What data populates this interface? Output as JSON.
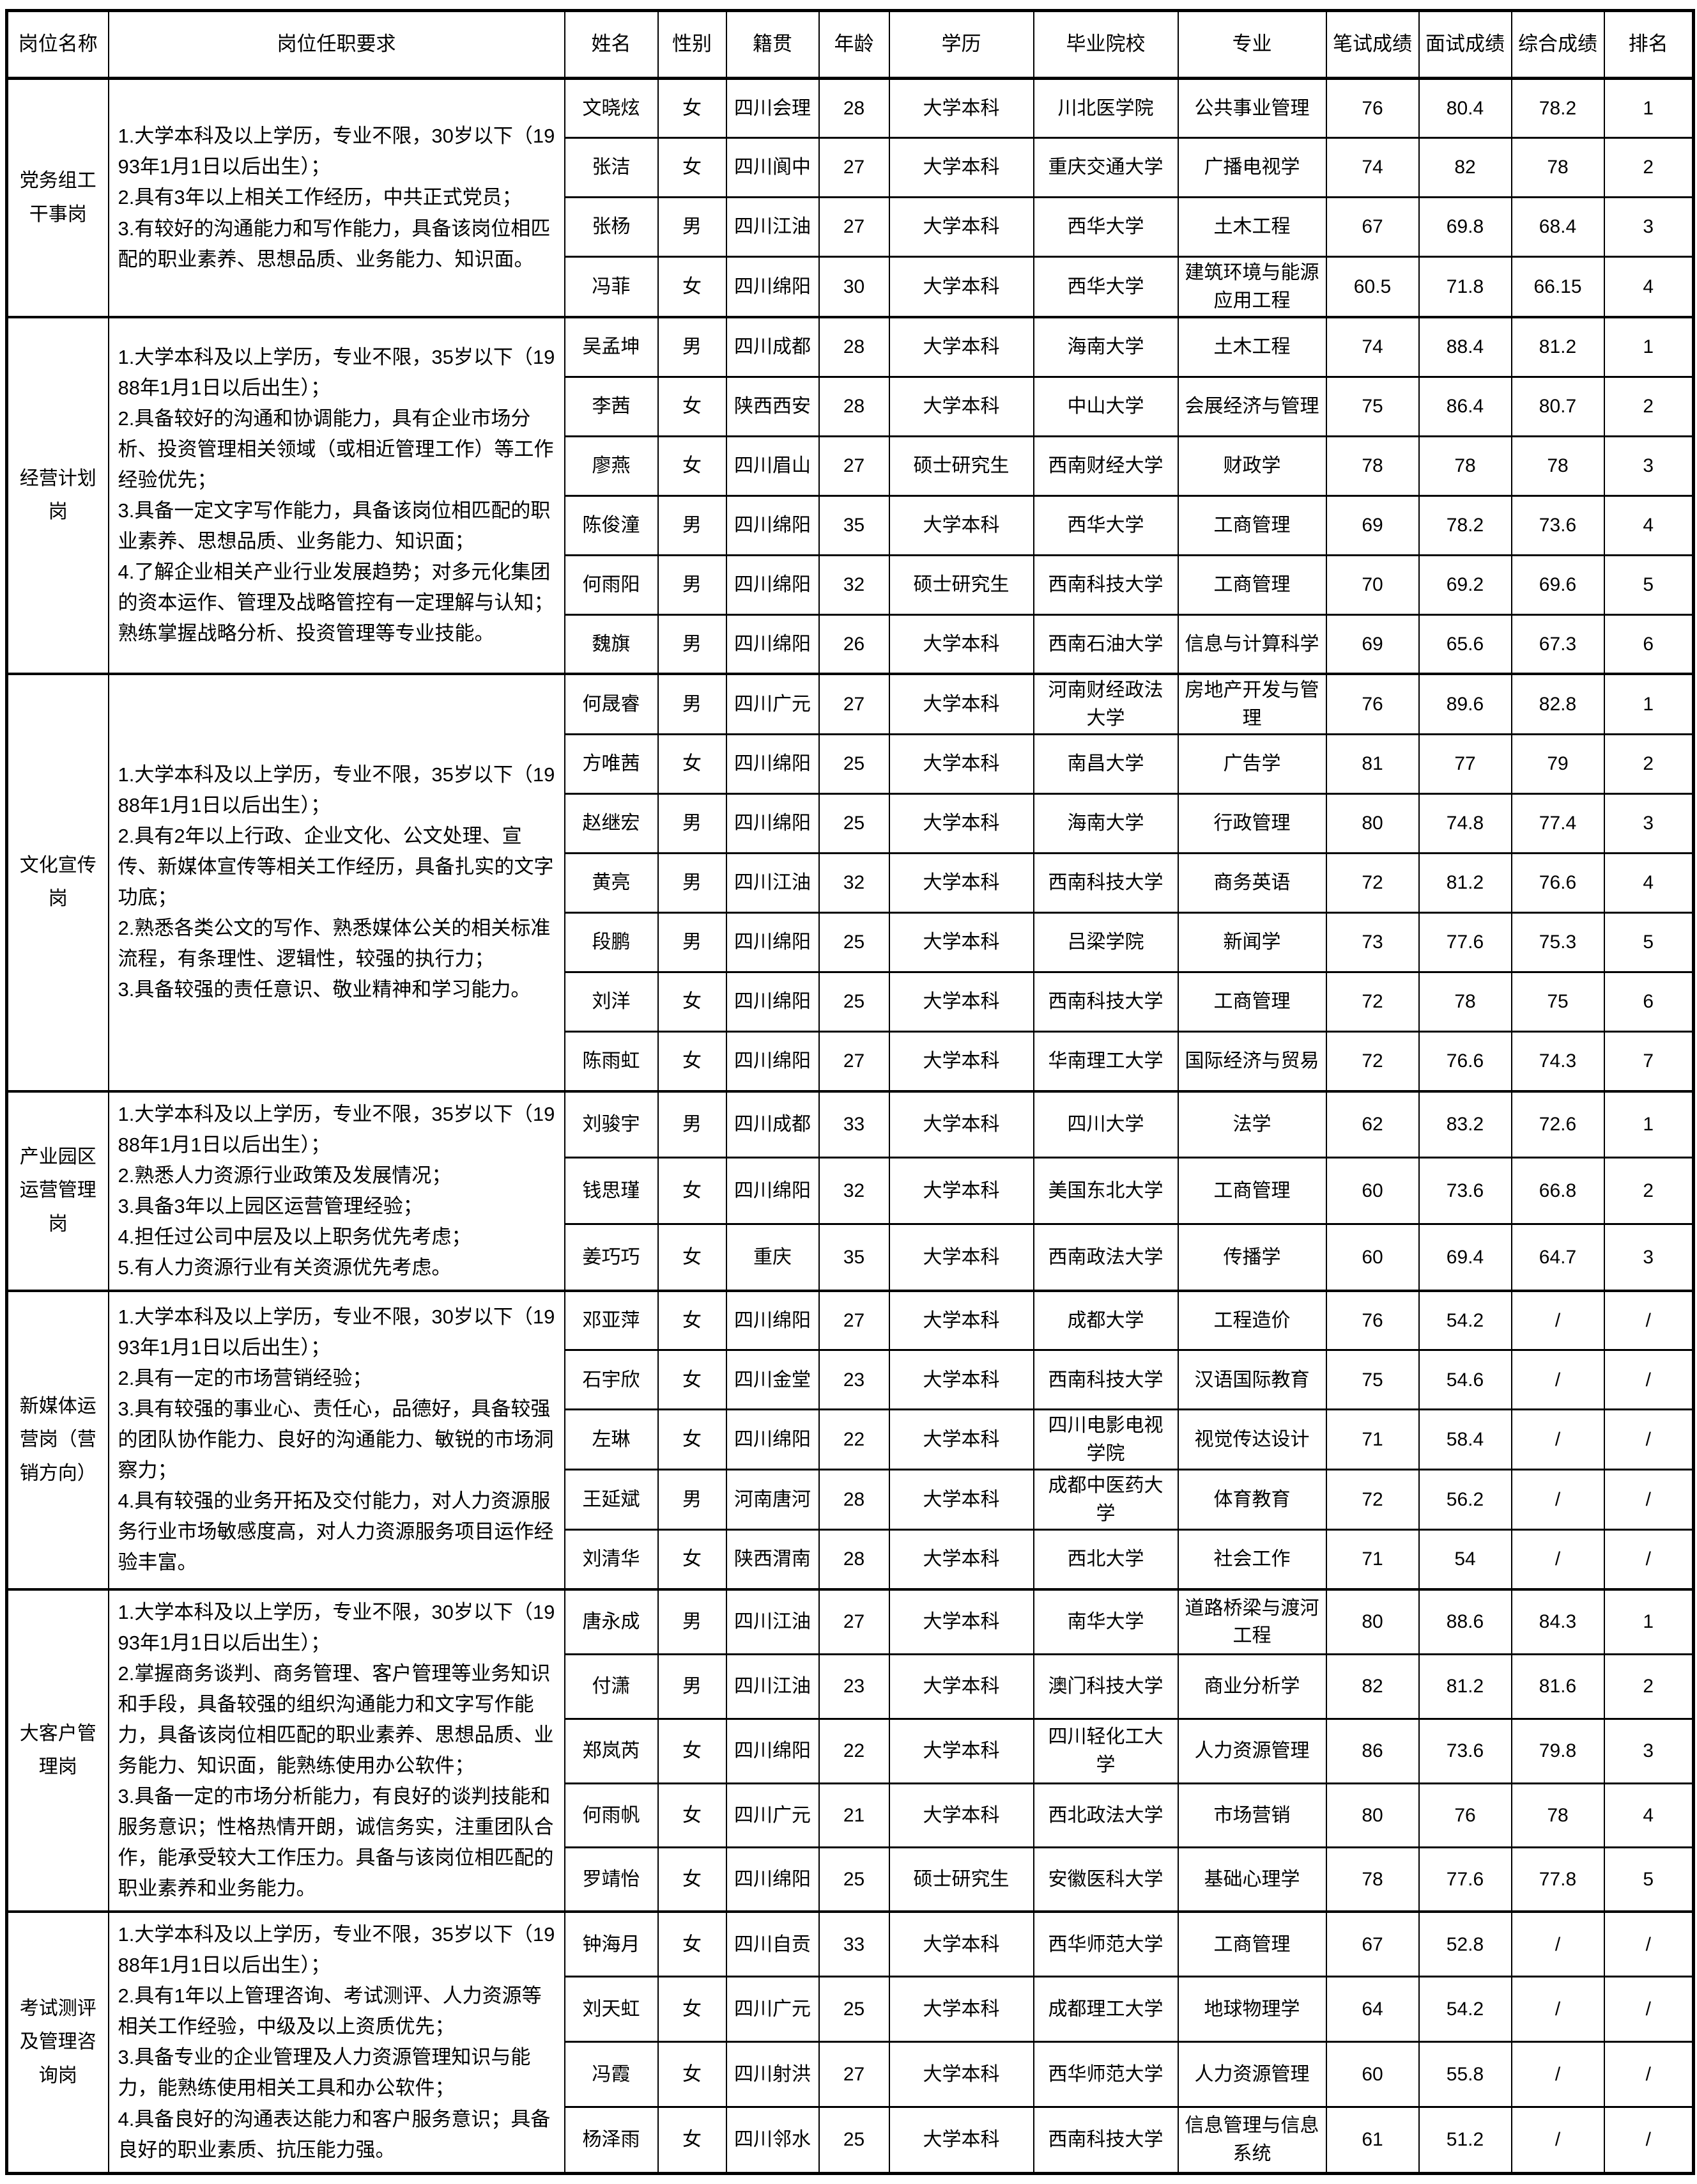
{
  "table": {
    "columns": [
      "岗位名称",
      "岗位任职要求",
      "姓名",
      "性别",
      "籍贯",
      "年龄",
      "学历",
      "毕业院校",
      "专业",
      "笔试成绩",
      "面试成绩",
      "综合成绩",
      "排名"
    ],
    "groups": [
      {
        "position": "党务组工干事岗",
        "requirements": "1.大学本科及以上学历，专业不限，30岁以下（1993年1月1日以后出生）；\n2.具有3年以上相关工作经历，中共正式党员；\n3.有较好的沟通能力和写作能力，具备该岗位相匹配的职业素养、思想品质、业务能力、知识面。",
        "rows": [
          [
            "文晓炫",
            "女",
            "四川会理",
            "28",
            "大学本科",
            "川北医学院",
            "公共事业管理",
            "76",
            "80.4",
            "78.2",
            "1"
          ],
          [
            "张洁",
            "女",
            "四川阆中",
            "27",
            "大学本科",
            "重庆交通大学",
            "广播电视学",
            "74",
            "82",
            "78",
            "2"
          ],
          [
            "张杨",
            "男",
            "四川江油",
            "27",
            "大学本科",
            "西华大学",
            "土木工程",
            "67",
            "69.8",
            "68.4",
            "3"
          ],
          [
            "冯菲",
            "女",
            "四川绵阳",
            "30",
            "大学本科",
            "西华大学",
            "建筑环境与能源应用工程",
            "60.5",
            "71.8",
            "66.15",
            "4"
          ]
        ]
      },
      {
        "position": "经营计划岗",
        "requirements": "1.大学本科及以上学历，专业不限，35岁以下（1988年1月1日以后出生）；\n2.具备较好的沟通和协调能力，具有企业市场分析、投资管理相关领域（或相近管理工作）等工作经验优先；\n3.具备一定文字写作能力，具备该岗位相匹配的职业素养、思想品质、业务能力、知识面；\n4.了解企业相关产业行业发展趋势；对多元化集团的资本运作、管理及战略管控有一定理解与认知；熟练掌握战略分析、投资管理等专业技能。",
        "rows": [
          [
            "吴孟坤",
            "男",
            "四川成都",
            "28",
            "大学本科",
            "海南大学",
            "土木工程",
            "74",
            "88.4",
            "81.2",
            "1"
          ],
          [
            "李茜",
            "女",
            "陕西西安",
            "28",
            "大学本科",
            "中山大学",
            "会展经济与管理",
            "75",
            "86.4",
            "80.7",
            "2"
          ],
          [
            "廖燕",
            "女",
            "四川眉山",
            "27",
            "硕士研究生",
            "西南财经大学",
            "财政学",
            "78",
            "78",
            "78",
            "3"
          ],
          [
            "陈俊潼",
            "男",
            "四川绵阳",
            "35",
            "大学本科",
            "西华大学",
            "工商管理",
            "69",
            "78.2",
            "73.6",
            "4"
          ],
          [
            "何雨阳",
            "男",
            "四川绵阳",
            "32",
            "硕士研究生",
            "西南科技大学",
            "工商管理",
            "70",
            "69.2",
            "69.6",
            "5"
          ],
          [
            "魏旗",
            "男",
            "四川绵阳",
            "26",
            "大学本科",
            "西南石油大学",
            "信息与计算科学",
            "69",
            "65.6",
            "67.3",
            "6"
          ]
        ]
      },
      {
        "position": "文化宣传岗",
        "requirements": "1.大学本科及以上学历，专业不限，35岁以下（1988年1月1日以后出生）；\n2.具有2年以上行政、企业文化、公文处理、宣传、新媒体宣传等相关工作经历，具备扎实的文字功底；\n2.熟悉各类公文的写作、熟悉媒体公关的相关标准流程，有条理性、逻辑性，较强的执行力；\n3.具备较强的责任意识、敬业精神和学习能力。",
        "rows": [
          [
            "何晟睿",
            "男",
            "四川广元",
            "27",
            "大学本科",
            "河南财经政法大学",
            "房地产开发与管理",
            "76",
            "89.6",
            "82.8",
            "1"
          ],
          [
            "方唯茜",
            "女",
            "四川绵阳",
            "25",
            "大学本科",
            "南昌大学",
            "广告学",
            "81",
            "77",
            "79",
            "2"
          ],
          [
            "赵继宏",
            "男",
            "四川绵阳",
            "25",
            "大学本科",
            "海南大学",
            "行政管理",
            "80",
            "74.8",
            "77.4",
            "3"
          ],
          [
            "黄亮",
            "男",
            "四川江油",
            "32",
            "大学本科",
            "西南科技大学",
            "商务英语",
            "72",
            "81.2",
            "76.6",
            "4"
          ],
          [
            "段鹏",
            "男",
            "四川绵阳",
            "25",
            "大学本科",
            "吕梁学院",
            "新闻学",
            "73",
            "77.6",
            "75.3",
            "5"
          ],
          [
            "刘洋",
            "女",
            "四川绵阳",
            "25",
            "大学本科",
            "西南科技大学",
            "工商管理",
            "72",
            "78",
            "75",
            "6"
          ],
          [
            "陈雨虹",
            "女",
            "四川绵阳",
            "27",
            "大学本科",
            "华南理工大学",
            "国际经济与贸易",
            "72",
            "76.6",
            "74.3",
            "7"
          ]
        ]
      },
      {
        "position": "产业园区运营管理岗",
        "requirements": "1.大学本科及以上学历，专业不限，35岁以下（1988年1月1日以后出生）；\n2.熟悉人力资源行业政策及发展情况；\n3.具备3年以上园区运营管理经验；\n4.担任过公司中层及以上职务优先考虑；\n5.有人力资源行业有关资源优先考虑。",
        "rows": [
          [
            "刘骏宇",
            "男",
            "四川成都",
            "33",
            "大学本科",
            "四川大学",
            "法学",
            "62",
            "83.2",
            "72.6",
            "1"
          ],
          [
            "钱思瑾",
            "女",
            "四川绵阳",
            "32",
            "大学本科",
            "美国东北大学",
            "工商管理",
            "60",
            "73.6",
            "66.8",
            "2"
          ],
          [
            "姜巧巧",
            "女",
            "重庆",
            "35",
            "大学本科",
            "西南政法大学",
            "传播学",
            "60",
            "69.4",
            "64.7",
            "3"
          ]
        ]
      },
      {
        "position": "新媒体运营岗（营销方向）",
        "requirements": "1.大学本科及以上学历，专业不限，30岁以下（1993年1月1日以后出生）；\n2.具有一定的市场营销经验；\n3.具有较强的事业心、责任心，品德好，具备较强的团队协作能力、良好的沟通能力、敏锐的市场洞察力；\n4.具有较强的业务开拓及交付能力，对人力资源服务行业市场敏感度高，对人力资源服务项目运作经验丰富。",
        "rows": [
          [
            "邓亚萍",
            "女",
            "四川绵阳",
            "27",
            "大学本科",
            "成都大学",
            "工程造价",
            "76",
            "54.2",
            "/",
            "/"
          ],
          [
            "石宇欣",
            "女",
            "四川金堂",
            "23",
            "大学本科",
            "西南科技大学",
            "汉语国际教育",
            "75",
            "54.6",
            "/",
            "/"
          ],
          [
            "左琳",
            "女",
            "四川绵阳",
            "22",
            "大学本科",
            "四川电影电视学院",
            "视觉传达设计",
            "71",
            "58.4",
            "/",
            "/"
          ],
          [
            "王延斌",
            "男",
            "河南唐河",
            "28",
            "大学本科",
            "成都中医药大学",
            "体育教育",
            "72",
            "56.2",
            "/",
            "/"
          ],
          [
            "刘清华",
            "女",
            "陕西渭南",
            "28",
            "大学本科",
            "西北大学",
            "社会工作",
            "71",
            "54",
            "/",
            "/"
          ]
        ]
      },
      {
        "position": "大客户管理岗",
        "requirements": "1.大学本科及以上学历，专业不限，30岁以下（1993年1月1日以后出生）；\n2.掌握商务谈判、商务管理、客户管理等业务知识和手段，具备较强的组织沟通能力和文字写作能力，具备该岗位相匹配的职业素养、思想品质、业务能力、知识面，能熟练使用办公软件；\n3.具备一定的市场分析能力，有良好的谈判技能和服务意识；性格热情开朗，诚信务实，注重团队合作，能承受较大工作压力。具备与该岗位相匹配的职业素养和业务能力。",
        "rows": [
          [
            "唐永成",
            "男",
            "四川江油",
            "27",
            "大学本科",
            "南华大学",
            "道路桥梁与渡河工程",
            "80",
            "88.6",
            "84.3",
            "1"
          ],
          [
            "付潇",
            "男",
            "四川江油",
            "23",
            "大学本科",
            "澳门科技大学",
            "商业分析学",
            "82",
            "81.2",
            "81.6",
            "2"
          ],
          [
            "郑岚芮",
            "女",
            "四川绵阳",
            "22",
            "大学本科",
            "四川轻化工大学",
            "人力资源管理",
            "86",
            "73.6",
            "79.8",
            "3"
          ],
          [
            "何雨帆",
            "女",
            "四川广元",
            "21",
            "大学本科",
            "西北政法大学",
            "市场营销",
            "80",
            "76",
            "78",
            "4"
          ],
          [
            "罗靖怡",
            "女",
            "四川绵阳",
            "25",
            "硕士研究生",
            "安徽医科大学",
            "基础心理学",
            "78",
            "77.6",
            "77.8",
            "5"
          ]
        ]
      },
      {
        "position": "考试测评及管理咨询岗",
        "requirements": "1.大学本科及以上学历，专业不限，35岁以下（1988年1月1日以后出生）；\n2.具有1年以上管理咨询、考试测评、人力资源等相关工作经验，中级及以上资质优先；\n3.具备专业的企业管理及人力资源管理知识与能力，能熟练使用相关工具和办公软件；\n4.具备良好的沟通表达能力和客户服务意识；具备良好的职业素质、抗压能力强。",
        "rows": [
          [
            "钟海月",
            "女",
            "四川自贡",
            "33",
            "大学本科",
            "西华师范大学",
            "工商管理",
            "67",
            "52.8",
            "/",
            "/"
          ],
          [
            "刘天虹",
            "女",
            "四川广元",
            "25",
            "大学本科",
            "成都理工大学",
            "地球物理学",
            "64",
            "54.2",
            "/",
            "/"
          ],
          [
            "冯霞",
            "女",
            "四川射洪",
            "27",
            "大学本科",
            "西华师范大学",
            "人力资源管理",
            "60",
            "55.8",
            "/",
            "/"
          ],
          [
            "杨泽雨",
            "女",
            "四川邻水",
            "25",
            "大学本科",
            "西南科技大学",
            "信息管理与信息系统",
            "61",
            "51.2",
            "/",
            "/"
          ]
        ]
      }
    ]
  },
  "colors": {
    "border": "#000000",
    "background": "#ffffff",
    "text": "#000000"
  }
}
